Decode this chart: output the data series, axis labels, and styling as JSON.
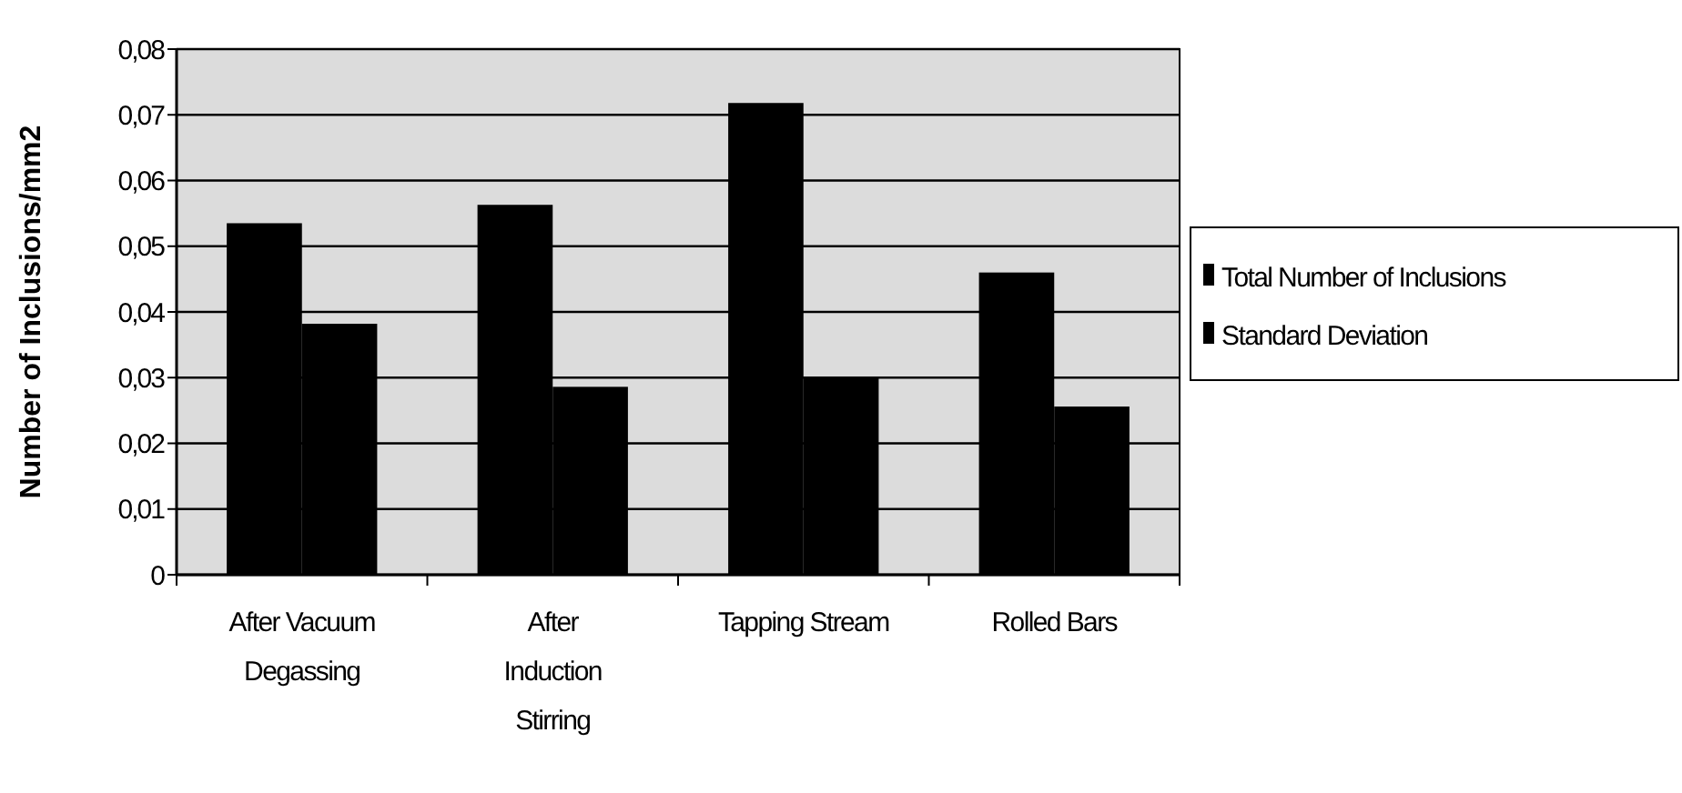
{
  "chart_data": {
    "type": "bar",
    "ylabel": "Number of Inclusions/mm2",
    "categories": [
      "After Vacuum Degassing",
      "After Induction Stirring",
      "Tapping Stream",
      "Rolled Bars"
    ],
    "series": [
      {
        "name": "Total Number of Inclusions",
        "color": "#000000",
        "values": [
          0.0535,
          0.0563,
          0.0718,
          0.046
        ]
      },
      {
        "name": "Standard Deviation",
        "color": "#000000",
        "values": [
          0.0382,
          0.0286,
          0.03,
          0.0256
        ]
      }
    ],
    "ylim": [
      0,
      0.08
    ],
    "yticks": [
      {
        "value": 0,
        "label": "0"
      },
      {
        "value": 0.01,
        "label": "0,01"
      },
      {
        "value": 0.02,
        "label": "0,02"
      },
      {
        "value": 0.03,
        "label": "0,03"
      },
      {
        "value": 0.04,
        "label": "0,04"
      },
      {
        "value": 0.05,
        "label": "0,05"
      },
      {
        "value": 0.06,
        "label": "0,06"
      },
      {
        "value": 0.07,
        "label": "0,07"
      },
      {
        "value": 0.08,
        "label": "0,08"
      }
    ],
    "grid": "y",
    "legend": "right"
  }
}
